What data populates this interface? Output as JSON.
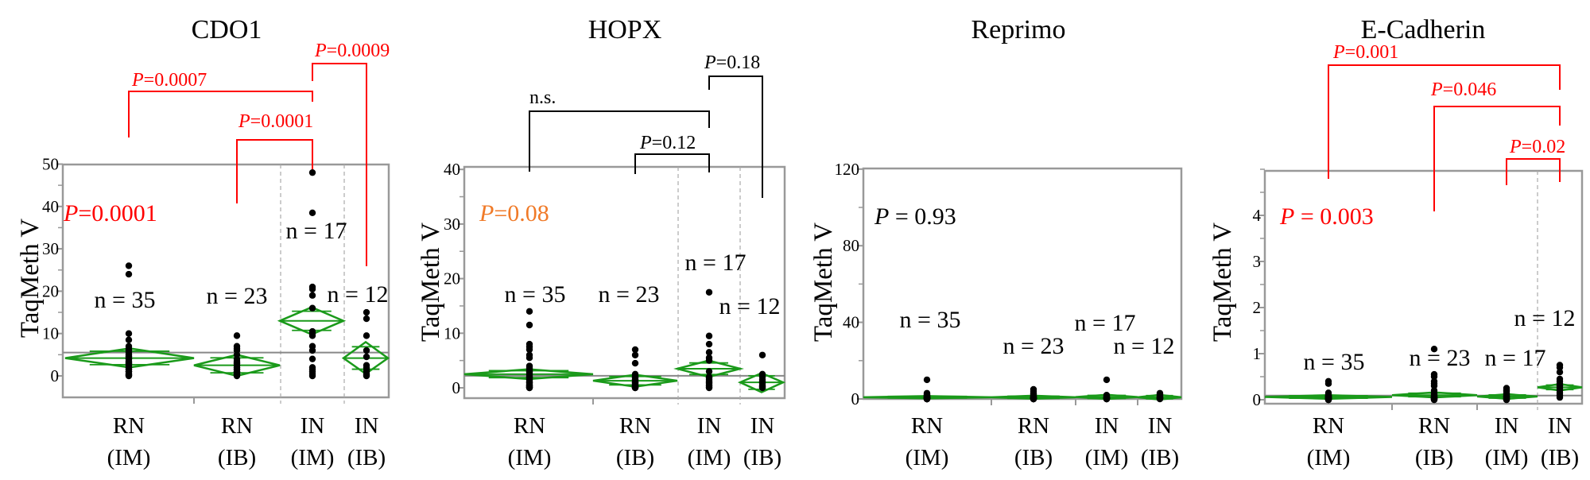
{
  "colors": {
    "significant": "#ff0000",
    "trend": "#f07a28",
    "nonsignificant": "#000000",
    "diamond": "#1a9a1a",
    "frame": "#999999",
    "point": "#000000"
  },
  "chart_data": [
    {
      "type": "scatter",
      "subtype": "means-diamonds",
      "title": "CDO1",
      "ylabel": "TaqMeth V",
      "ylim": [
        -5,
        50
      ],
      "yticks": [
        0,
        10,
        20,
        30,
        40,
        50
      ],
      "minor_step": 5,
      "categories": [
        [
          "RN",
          "(IM)"
        ],
        [
          "RN",
          "(IB)"
        ],
        [
          "IN",
          "(IM)"
        ],
        [
          "IN",
          "(IB)"
        ]
      ],
      "n_labels": [
        "n = 35",
        "n = 23",
        "n = 17",
        "n = 12"
      ],
      "overall_p": {
        "text_p": "P",
        "text_rest": "=0.0001",
        "color": "#ff0000"
      },
      "grand_mean": 5.5,
      "groups": [
        {
          "mean": 4.2,
          "lower": 2.0,
          "upper": 6.5,
          "values": [
            26,
            24,
            10,
            8.5,
            7,
            6.5,
            6,
            6,
            5.5,
            5,
            5,
            4.5,
            4.5,
            4,
            4,
            3.5,
            3.5,
            3,
            3,
            3,
            2.5,
            2.5,
            2,
            2,
            2,
            1.5,
            1.5,
            1,
            1,
            1,
            0.5,
            0.5,
            0.2,
            0.1,
            0
          ]
        },
        {
          "mean": 2.5,
          "lower": 0.0,
          "upper": 5.0,
          "values": [
            9.5,
            7,
            6.5,
            6,
            5,
            4,
            3.5,
            3,
            3,
            2.5,
            2.5,
            2,
            2,
            1.5,
            1.5,
            1,
            1,
            0.8,
            0.5,
            0.5,
            0.3,
            0.2,
            0
          ]
        },
        {
          "mean": 13.0,
          "lower": 9.8,
          "upper": 16.2,
          "values": [
            48,
            38.5,
            21,
            20.5,
            19,
            16,
            10.5,
            10,
            9.5,
            7,
            6,
            4,
            2,
            1.5,
            1,
            0.5,
            0
          ]
        },
        {
          "mean": 4.2,
          "lower": 0.5,
          "upper": 8.0,
          "values": [
            15,
            13.5,
            9.5,
            6,
            4.5,
            2.5,
            2,
            1.5,
            1,
            0.5,
            0.2,
            0
          ]
        }
      ],
      "comparisons": [
        {
          "groups": [
            0,
            2
          ],
          "text_p": "P",
          "text_rest": "=0.0007",
          "color": "#ff0000"
        },
        {
          "groups": [
            1,
            2
          ],
          "text_p": "P",
          "text_rest": "=0.0001",
          "color": "#ff0000"
        },
        {
          "groups": [
            2,
            3
          ],
          "text_p": "P",
          "text_rest": "=0.0009",
          "color": "#ff0000"
        }
      ]
    },
    {
      "type": "scatter",
      "subtype": "means-diamonds",
      "title": "HOPX",
      "ylabel": "TaqMeth V",
      "ylim": [
        -2,
        40
      ],
      "yticks": [
        0,
        10,
        20,
        30,
        40
      ],
      "minor_step": 5,
      "categories": [
        [
          "RN",
          "(IM)"
        ],
        [
          "RN",
          "(IB)"
        ],
        [
          "IN",
          "(IM)"
        ],
        [
          "IN",
          "(IB)"
        ]
      ],
      "n_labels": [
        "n = 35",
        "n = 23",
        "n = 17",
        "n = 12"
      ],
      "overall_p": {
        "text_p": "P",
        "text_rest": "=0.08",
        "color": "#f07a28"
      },
      "grand_mean": 2.2,
      "groups": [
        {
          "mean": 2.5,
          "lower": 1.6,
          "upper": 3.4,
          "values": [
            14,
            11.5,
            8,
            7.5,
            7,
            6,
            5.5,
            4,
            3.8,
            3.5,
            3.2,
            3,
            3,
            2.8,
            2.5,
            2.5,
            2.2,
            2,
            2,
            1.8,
            1.5,
            1.5,
            1.2,
            1,
            1,
            0.8,
            0.6,
            0.5,
            0.4,
            0.3,
            0.2,
            0.1,
            0.1,
            0,
            0
          ]
        },
        {
          "mean": 1.3,
          "lower": 0.2,
          "upper": 2.4,
          "values": [
            7,
            6,
            4.5,
            2.5,
            2.2,
            2,
            1.8,
            1.5,
            1.5,
            1.2,
            1,
            1,
            0.8,
            0.6,
            0.5,
            0.5,
            0.3,
            0.2,
            0.2,
            0.1,
            0.1,
            0,
            0
          ]
        },
        {
          "mean": 3.5,
          "lower": 2.0,
          "upper": 5.0,
          "values": [
            17.5,
            9.5,
            8,
            6.5,
            5.5,
            5,
            3,
            2,
            1.8,
            1.5,
            1.2,
            1,
            0.8,
            0.5,
            0.3,
            0.1,
            0
          ]
        },
        {
          "mean": 1.0,
          "lower": -0.8,
          "upper": 2.7,
          "values": [
            6,
            2.5,
            2,
            1.5,
            1.2,
            1,
            0.8,
            0.5,
            0.3,
            0.2,
            0.1,
            0
          ]
        }
      ],
      "comparisons": [
        {
          "groups": [
            0,
            2
          ],
          "text_p": "",
          "text_rest": "n.s.",
          "color": "#000000"
        },
        {
          "groups": [
            1,
            2
          ],
          "text_p": "P",
          "text_rest": "=0.12",
          "color": "#000000"
        },
        {
          "groups": [
            2,
            3
          ],
          "text_p": "P",
          "text_rest": "=0.18",
          "color": "#000000"
        }
      ]
    },
    {
      "type": "scatter",
      "subtype": "means-diamonds",
      "title": "Reprimo",
      "ylabel": "TaqMeth V",
      "ylim": [
        0,
        120
      ],
      "yticks": [
        0,
        40,
        80,
        120
      ],
      "minor_step": 20,
      "categories": [
        [
          "RN",
          "(IM)"
        ],
        [
          "RN",
          "(IB)"
        ],
        [
          "IN",
          "(IM)"
        ],
        [
          "IN",
          "(IB)"
        ]
      ],
      "n_labels": [
        "n = 35",
        "n = 23",
        "n = 17",
        "n = 12"
      ],
      "overall_p": {
        "text_p": "P",
        "text_rest": " = 0.93",
        "color": "#000000"
      },
      "grand_mean": 0.8,
      "groups": [
        {
          "mean": 0.9,
          "lower": 0.3,
          "upper": 1.5,
          "values": [
            10,
            3,
            2.5,
            2,
            2,
            1.8,
            1.5,
            1.5,
            1.2,
            1,
            1,
            1,
            0.8,
            0.8,
            0.6,
            0.5,
            0.5,
            0.4,
            0.3,
            0.3,
            0.2,
            0.2,
            0.2,
            0.1,
            0.1,
            0.1,
            0.1,
            0,
            0,
            0,
            0,
            0,
            0,
            0,
            0
          ]
        },
        {
          "mean": 0.9,
          "lower": 0.1,
          "upper": 1.7,
          "values": [
            5,
            4,
            3,
            2.5,
            2,
            1.5,
            1.2,
            1,
            1,
            0.8,
            0.6,
            0.5,
            0.4,
            0.3,
            0.2,
            0.2,
            0.1,
            0.1,
            0,
            0,
            0,
            0,
            0
          ]
        },
        {
          "mean": 1.0,
          "lower": 0.0,
          "upper": 2.2,
          "values": [
            10,
            2,
            1.5,
            1.2,
            1,
            0.8,
            0.6,
            0.5,
            0.4,
            0.3,
            0.2,
            0.1,
            0.1,
            0,
            0,
            0,
            0
          ]
        },
        {
          "mean": 0.9,
          "lower": -0.3,
          "upper": 2.1,
          "values": [
            3,
            2.5,
            2,
            1.5,
            1.2,
            1,
            0.8,
            0.5,
            0.3,
            0.2,
            0.1,
            0
          ]
        }
      ],
      "comparisons": []
    },
    {
      "type": "scatter",
      "subtype": "means-diamonds",
      "title": "E-Cadherin",
      "ylabel": "TaqMeth V",
      "ylim": [
        -0.1,
        5
      ],
      "yticks": [
        0,
        1,
        2,
        3,
        4
      ],
      "minor_step": 0.5,
      "categories": [
        [
          "RN",
          "(IM)"
        ],
        [
          "RN",
          "(IB)"
        ],
        [
          "IN",
          "(IM)"
        ],
        [
          "IN",
          "(IB)"
        ]
      ],
      "n_labels": [
        "n = 35",
        "n = 23",
        "n = 17",
        "n = 12"
      ],
      "overall_p": {
        "text_p": "P",
        "text_rest": " = 0.003",
        "color": "#ff0000"
      },
      "grand_mean": 0.09,
      "groups": [
        {
          "mean": 0.06,
          "lower": 0.02,
          "upper": 0.1,
          "values": [
            0.4,
            0.35,
            0.15,
            0.12,
            0.1,
            0.1,
            0.09,
            0.08,
            0.08,
            0.07,
            0.07,
            0.06,
            0.06,
            0.05,
            0.05,
            0.05,
            0.04,
            0.04,
            0.04,
            0.03,
            0.03,
            0.03,
            0.02,
            0.02,
            0.02,
            0.02,
            0.01,
            0.01,
            0.01,
            0.01,
            0,
            0,
            0,
            0,
            0
          ]
        },
        {
          "mean": 0.1,
          "lower": 0.05,
          "upper": 0.16,
          "values": [
            1.1,
            0.55,
            0.5,
            0.4,
            0.35,
            0.3,
            0.2,
            0.15,
            0.12,
            0.1,
            0.08,
            0.07,
            0.06,
            0.05,
            0.05,
            0.04,
            0.03,
            0.03,
            0.02,
            0.02,
            0.01,
            0,
            0
          ]
        },
        {
          "mean": 0.07,
          "lower": 0.02,
          "upper": 0.12,
          "values": [
            0.25,
            0.22,
            0.2,
            0.18,
            0.15,
            0.12,
            0.1,
            0.08,
            0.07,
            0.06,
            0.05,
            0.04,
            0.03,
            0.02,
            0.01,
            0,
            0
          ]
        },
        {
          "mean": 0.27,
          "lower": 0.2,
          "upper": 0.34,
          "values": [
            0.75,
            0.7,
            0.6,
            0.45,
            0.4,
            0.35,
            0.3,
            0.25,
            0.2,
            0.15,
            0.1,
            0.05
          ]
        }
      ],
      "comparisons": [
        {
          "groups": [
            0,
            3
          ],
          "text_p": "P",
          "text_rest": "=0.001",
          "color": "#ff0000"
        },
        {
          "groups": [
            1,
            3
          ],
          "text_p": "P",
          "text_rest": "=0.046",
          "color": "#ff0000"
        },
        {
          "groups": [
            2,
            3
          ],
          "text_p": "P",
          "text_rest": "=0.02",
          "color": "#ff0000"
        }
      ]
    }
  ]
}
